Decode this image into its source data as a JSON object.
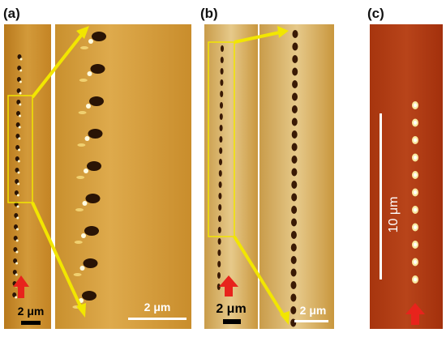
{
  "panels": [
    {
      "label": "(a)",
      "scale_bars": [
        "2 μm",
        "2 μm"
      ]
    },
    {
      "label": "(b)",
      "scale_bars": [
        "2 μm",
        "2 μm"
      ]
    },
    {
      "label": "(c)",
      "scale_bars": [
        "10 μm"
      ]
    }
  ]
}
